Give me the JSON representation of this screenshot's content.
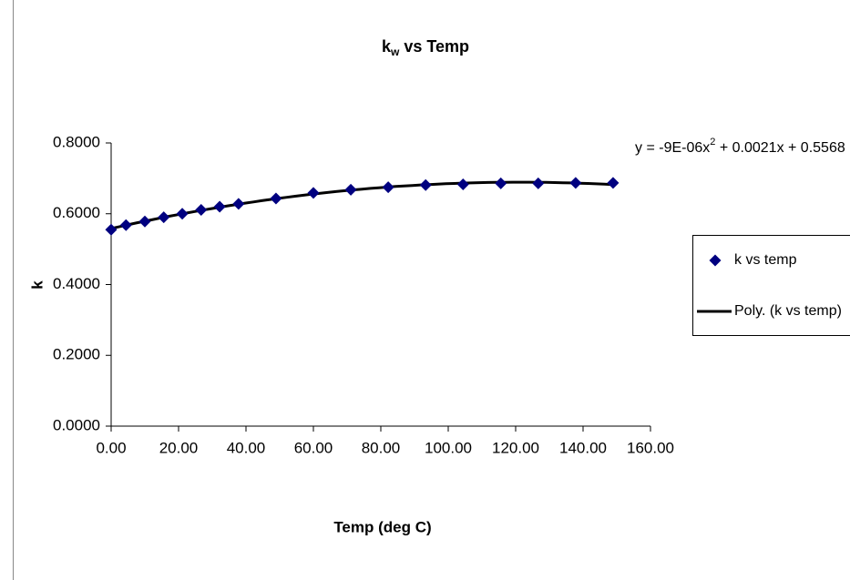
{
  "chart_data": {
    "type": "scatter",
    "title": {
      "main": "k",
      "sub": "w",
      "rest": " vs Temp"
    },
    "x_label": "Temp (deg C)",
    "y_label": "k",
    "xlim": [
      0,
      160
    ],
    "ylim": [
      0,
      0.8
    ],
    "xticks": [
      {
        "value": 0,
        "label": "0.00"
      },
      {
        "value": 20,
        "label": "20.00"
      },
      {
        "value": 40,
        "label": "40.00"
      },
      {
        "value": 60,
        "label": "60.00"
      },
      {
        "value": 80,
        "label": "80.00"
      },
      {
        "value": 100,
        "label": "100.00"
      },
      {
        "value": 120,
        "label": "120.00"
      },
      {
        "value": 140,
        "label": "140.00"
      },
      {
        "value": 160,
        "label": "160.00"
      }
    ],
    "yticks": [
      {
        "value": 0,
        "label": "0.0000"
      },
      {
        "value": 0.2,
        "label": "0.2000"
      },
      {
        "value": 0.4,
        "label": "0.4000"
      },
      {
        "value": 0.6,
        "label": "0.6000"
      },
      {
        "value": 0.8,
        "label": "0.8000"
      }
    ],
    "series": [
      {
        "name": "k vs temp",
        "color": "#000080",
        "marker": "diamond",
        "x": [
          0,
          4.4,
          10,
          15.6,
          21.1,
          26.7,
          32.2,
          37.8,
          48.9,
          60,
          71.1,
          82.2,
          93.3,
          104.4,
          115.6,
          126.7,
          137.8,
          148.9
        ],
        "values": [
          0.555,
          0.568,
          0.578,
          0.59,
          0.6,
          0.611,
          0.62,
          0.628,
          0.643,
          0.659,
          0.668,
          0.675,
          0.681,
          0.683,
          0.686,
          0.686,
          0.687,
          0.687
        ]
      }
    ],
    "trendline": {
      "name": "Poly. (k vs temp)",
      "order": 2,
      "color": "#000000",
      "equation": {
        "text": "y = -9E-06x",
        "sup": "2",
        "rest": " + 0.0021x + 0.5568"
      }
    }
  }
}
